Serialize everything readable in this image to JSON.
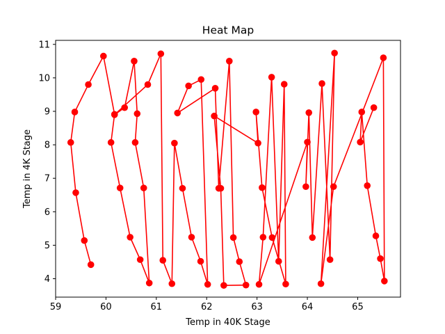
{
  "chart_data": {
    "type": "line",
    "title": "Heat Map",
    "xlabel": "Temp in 40K Stage",
    "ylabel": "Temp in 4K Stage",
    "xlim": [
      59.0,
      65.85
    ],
    "ylim": [
      3.45,
      11.12
    ],
    "xticks": [
      59,
      60,
      61,
      62,
      63,
      64,
      65
    ],
    "yticks": [
      4,
      5,
      6,
      7,
      8,
      9,
      10,
      11
    ],
    "grid": false,
    "legend": "none",
    "series": [
      {
        "color": "#ff0000",
        "marker": "circle",
        "x": [
          59.7,
          59.57,
          59.4,
          59.3,
          59.38,
          59.65,
          59.95,
          60.17,
          60.1,
          60.28,
          60.48,
          60.68,
          60.86,
          60.75,
          60.58,
          60.62,
          60.56,
          60.37,
          60.17,
          60.83,
          61.09,
          61.13,
          61.31,
          61.36,
          61.52,
          61.7,
          61.88,
          62.02,
          61.89,
          61.64,
          61.42,
          62.17,
          62.24,
          62.45,
          62.53,
          62.65,
          62.78,
          62.34,
          62.28,
          62.15,
          63.02,
          62.98,
          63.1,
          63.3,
          63.57,
          63.54,
          63.43,
          63.29,
          63.12,
          63.04,
          64.0,
          63.97,
          64.03,
          64.1,
          64.29,
          64.45,
          64.54,
          64.27,
          64.52,
          65.51,
          65.53,
          65.45,
          65.36,
          65.19,
          65.08,
          65.05,
          65.32
        ]
      }
    ],
    "y_values": [
      4.42,
      5.14,
      6.57,
      8.07,
      8.98,
      9.8,
      10.65,
      8.91,
      8.07,
      6.71,
      5.24,
      4.57,
      3.87,
      6.71,
      8.07,
      8.93,
      10.5,
      9.11,
      8.9,
      9.8,
      10.72,
      4.55,
      3.85,
      8.05,
      6.7,
      5.24,
      4.52,
      3.83,
      9.95,
      9.76,
      8.95,
      9.69,
      6.7,
      10.5,
      5.23,
      4.51,
      3.81,
      3.8,
      6.7,
      8.86,
      8.05,
      8.98,
      6.72,
      5.23,
      3.84,
      9.81,
      4.52,
      10.02,
      5.24,
      3.83,
      8.08,
      6.75,
      8.96,
      5.23,
      9.83,
      4.57,
      10.74,
      3.85,
      6.75,
      10.6,
      3.93,
      4.6,
      5.28,
      6.78,
      8.98,
      8.08,
      9.11
    ]
  }
}
